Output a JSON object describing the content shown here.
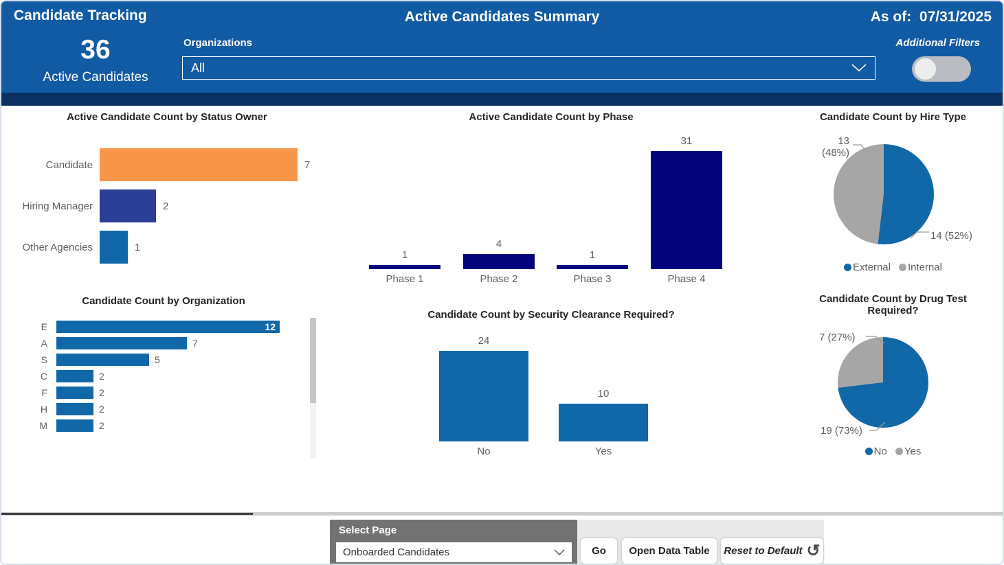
{
  "header": {
    "app_title": "Candidate Tracking",
    "page_title": "Active Candidates Summary",
    "as_of": "As of:  07/31/2025",
    "kpi": {
      "value": "36",
      "label": "Active Candidates"
    },
    "organizations": {
      "label": "Organizations",
      "value": "All"
    },
    "additional_filters_label": "Additional Filters"
  },
  "chart_data": [
    {
      "type": "bar",
      "orientation": "horizontal",
      "title": "Active Candidate Count by Status Owner",
      "categories": [
        "Candidate",
        "Hiring Manager",
        "Other Agencies"
      ],
      "values": [
        7,
        2,
        1
      ],
      "bar_colors": [
        "#F79649",
        "#2B3F97",
        "#1168A9"
      ],
      "xlim": [
        0,
        7
      ]
    },
    {
      "type": "bar",
      "orientation": "vertical",
      "title": "Active Candidate Count by Phase",
      "categories": [
        "Phase 1",
        "Phase 2",
        "Phase 3",
        "Phase 4"
      ],
      "values": [
        1,
        4,
        1,
        31
      ],
      "bar_color": "#03037B",
      "ylim": [
        0,
        31
      ]
    },
    {
      "type": "pie",
      "title": "Candidate Count by Hire Type",
      "slices": [
        {
          "label": "External",
          "value": 14,
          "pct": 52,
          "callout": "14 (52%)",
          "color": "#1168A9"
        },
        {
          "label": "Internal",
          "value": 13,
          "pct": 48,
          "callout": "13 (48%)",
          "color": "#A6A6A6"
        }
      ],
      "legend_position": "bottom"
    },
    {
      "type": "bar",
      "orientation": "horizontal",
      "title": "Candidate Count by Organization",
      "categories": [
        "E",
        "A",
        "S",
        "C",
        "F",
        "H",
        "M"
      ],
      "values": [
        12,
        7,
        5,
        2,
        2,
        2,
        2
      ],
      "bar_color": "#1168A9",
      "xlim": [
        0,
        12
      ]
    },
    {
      "type": "bar",
      "orientation": "vertical",
      "title": "Candidate Count by Security Clearance Required?",
      "categories": [
        "No",
        "Yes"
      ],
      "values": [
        24,
        10
      ],
      "bar_color": "#1168A9",
      "ylim": [
        0,
        24
      ]
    },
    {
      "type": "pie",
      "title": "Candidate Count by Drug Test Required?",
      "slices": [
        {
          "label": "No",
          "value": 19,
          "pct": 73,
          "callout": "19 (73%)",
          "color": "#1168A9"
        },
        {
          "label": "Yes",
          "value": 7,
          "pct": 27,
          "callout": "7 (27%)",
          "color": "#A6A6A6"
        }
      ],
      "legend_position": "bottom"
    }
  ],
  "footer": {
    "select_page_label": "Select Page",
    "select_page_value": "Onboarded Candidates",
    "go_label": "Go",
    "open_data_table_label": "Open Data Table",
    "reset_label": "Reset to Default",
    "undo_icon_glyph": "↺"
  },
  "colors": {
    "header_bg": "#115AA4",
    "header_strip": "#0A3161",
    "accent_orange": "#F79649",
    "accent_indigo": "#2B3F97",
    "accent_blue": "#1168A9",
    "accent_navy": "#03037B",
    "slice_gray": "#A6A6A6"
  }
}
